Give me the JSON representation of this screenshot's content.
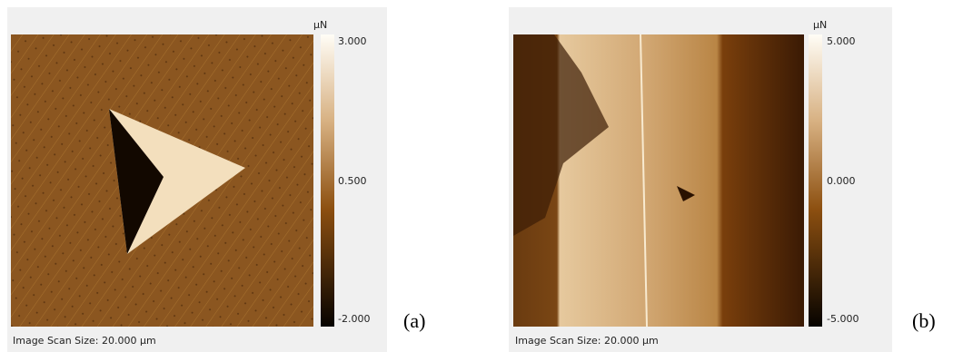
{
  "panels": [
    {
      "unit": "µN",
      "colorbar_ticks": [
        "3.000",
        "0.500",
        "-2.000"
      ],
      "caption": "Image Scan Size: 20.000 µm",
      "label": "(a)"
    },
    {
      "unit": "µN",
      "colorbar_ticks": [
        "5.000",
        "0.000",
        "-5.000"
      ],
      "caption": "Image Scan Size: 20.000 µm",
      "label": "(b)"
    }
  ]
}
